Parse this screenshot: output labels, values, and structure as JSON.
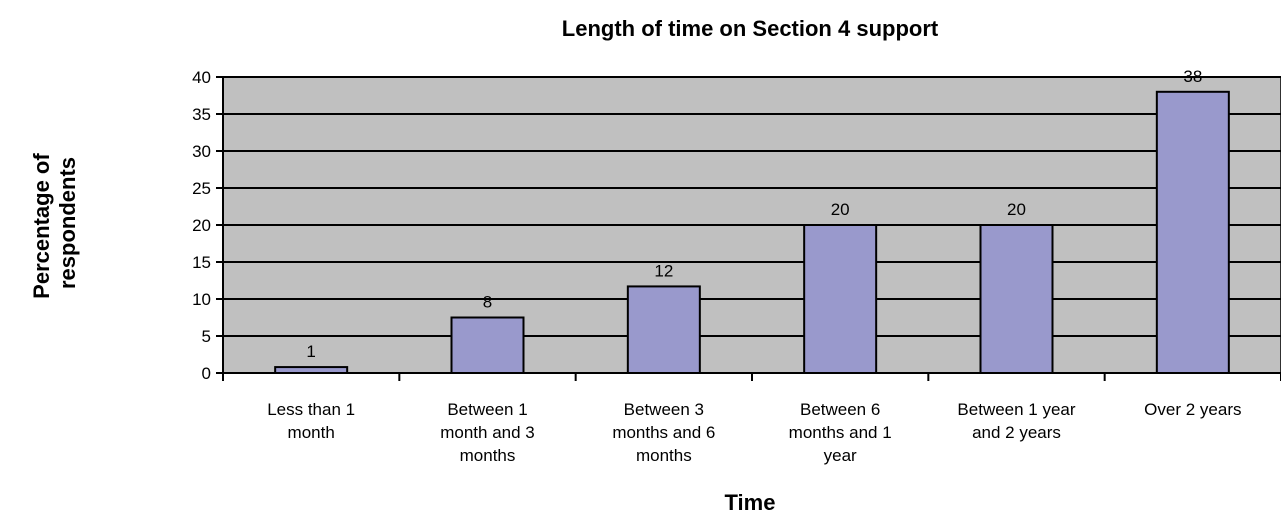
{
  "chart_data": {
    "type": "bar",
    "title": "Length of time on Section 4 support",
    "xlabel": "Time",
    "ylabel": [
      "Percentage of",
      "respondents"
    ],
    "ylim": [
      0,
      40
    ],
    "yticks": [
      0,
      5,
      10,
      15,
      20,
      25,
      30,
      35,
      40
    ],
    "grid": true,
    "legend": "none",
    "categories": [
      [
        "Less than 1",
        "month"
      ],
      [
        "Between 1",
        "month and 3",
        "months"
      ],
      [
        "Between 3",
        "months and 6",
        "months"
      ],
      [
        "Between 6",
        "months and 1",
        "year"
      ],
      [
        "Between 1 year",
        "and 2 years"
      ],
      [
        "Over 2 years"
      ]
    ],
    "values": [
      0.8,
      7.5,
      11.7,
      20,
      20,
      38
    ],
    "data_labels": [
      "1",
      "8",
      "12",
      "20",
      "20",
      "38"
    ],
    "colors": {
      "plot_background": "#c0c0c0",
      "bar_fill": "#9999cc",
      "bar_stroke": "#000000",
      "gridline": "#000000"
    }
  }
}
